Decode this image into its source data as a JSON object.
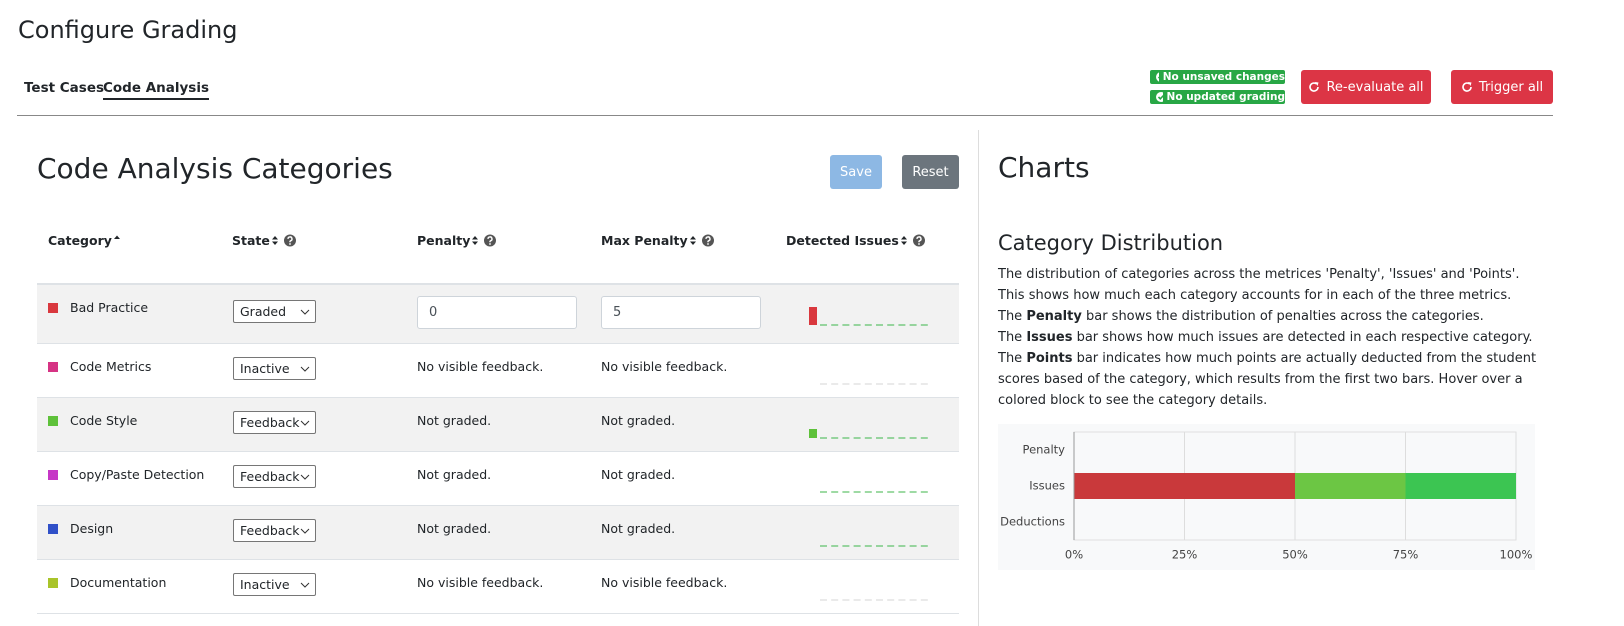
{
  "header": {
    "title": "Configure Grading",
    "tabs": [
      "Test Cases",
      "Code Analysis"
    ],
    "status": [
      "No unsaved changes",
      "No updated grading"
    ],
    "buttons": [
      "Re-evaluate all",
      "Trigger all"
    ]
  },
  "categories_panel": {
    "title": "Code Analysis Categories",
    "buttons": [
      "Save",
      "Reset"
    ],
    "columns": [
      "Category",
      "State",
      "Penalty",
      "Max Penalty",
      "Detected Issues"
    ],
    "rows": [
      {
        "category": "Bad Practice",
        "color": "#d9383e",
        "state": "Graded",
        "penalty": 0,
        "max_penalty": 5,
        "detected_issues": 2
      },
      {
        "category": "Code Metrics",
        "color": "#d63384",
        "state": "Inactive",
        "penalty": "No visible feedback.",
        "max_penalty": "No visible feedback.",
        "detected_issues": 0
      },
      {
        "category": "Code Style",
        "color": "#5ec13a",
        "state": "Feedback",
        "penalty": "Not graded.",
        "max_penalty": "Not graded.",
        "detected_issues": 1
      },
      {
        "category": "Copy/Paste Detection",
        "color": "#c637c6",
        "state": "Feedback",
        "penalty": "Not graded.",
        "max_penalty": "Not graded.",
        "detected_issues": 0
      },
      {
        "category": "Design",
        "color": "#3050c8",
        "state": "Feedback",
        "penalty": "Not graded.",
        "max_penalty": "Not graded.",
        "detected_issues": 0
      },
      {
        "category": "Documentation",
        "color": "#a9c42a",
        "state": "Inactive",
        "penalty": "No visible feedback.",
        "max_penalty": "No visible feedback.",
        "detected_issues": 0
      }
    ]
  },
  "charts_panel": {
    "title": "Charts",
    "subtitle": "Category Distribution",
    "description": [
      [
        "The distribution of categories across the metrices 'Penalty', 'Issues' and 'Points'. This shows how much each category accounts for in each of the three metrics."
      ],
      [
        "The ",
        "Penalty",
        " bar shows the distribution of penalties across the categories."
      ],
      [
        "The ",
        "Issues",
        " bar shows how much issues are detected in each respective category."
      ],
      [
        "The ",
        "Points",
        " bar indicates how much points are actually deducted from the student scores based of the category, which results from the first two bars. Hover over a colored block to see the category details."
      ]
    ]
  },
  "chart_data": {
    "type": "bar",
    "orientation": "horizontal",
    "stacked": true,
    "categories": [
      "Penalty",
      "Issues",
      "Deductions"
    ],
    "series": [
      {
        "color": "#c9393b",
        "values": [
          null,
          50,
          null
        ]
      },
      {
        "color": "#6cc644",
        "values": [
          null,
          25,
          null
        ]
      },
      {
        "color": "#3cc552",
        "values": [
          null,
          25,
          null
        ]
      }
    ],
    "xlim": [
      0,
      100
    ],
    "xticks": [
      {
        "value": 0,
        "label": "0%"
      },
      {
        "value": 25,
        "label": "25%"
      },
      {
        "value": 50,
        "label": "50%"
      },
      {
        "value": 75,
        "label": "75%"
      },
      {
        "value": 100,
        "label": "100%"
      }
    ],
    "grid": true
  }
}
